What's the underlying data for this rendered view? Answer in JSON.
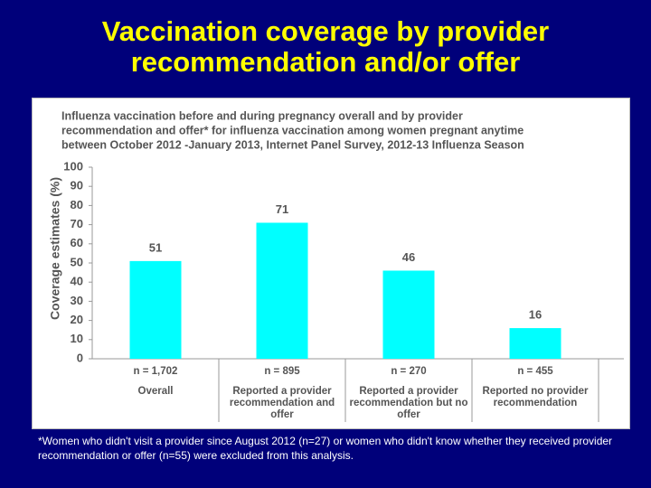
{
  "slide_title": "Vaccination coverage by provider recommendation and/or offer",
  "chart_data": {
    "type": "bar",
    "title": [
      "Influenza vaccination before and during pregnancy  overall and by provider",
      "recommendation and offer* for influenza  vaccination among women pregnant anytime",
      "between October 2012 -January 2013,  Internet Panel Survey, 2012-13 Influenza Season"
    ],
    "y_label": "Coverage  estimates (%)",
    "categories": [
      "Overall",
      "Reported a provider recommendation and offer",
      "Reported a provider recommendation but no offer",
      "Reported no provider recommendation"
    ],
    "n_labels": [
      "n = 1,702",
      "n = 895",
      "n = 270",
      "n = 455"
    ],
    "values": [
      51,
      71,
      46,
      16
    ],
    "color": "#00ffff",
    "ylim": [
      0,
      100
    ],
    "yticks": [
      0,
      10,
      20,
      30,
      40,
      50,
      60,
      70,
      80,
      90,
      100
    ]
  },
  "footnote": "*Women who didn't visit a provider since August 2012 (n=27) or women who didn't know whether they received provider recommendation or offer (n=55) were excluded from this analysis."
}
